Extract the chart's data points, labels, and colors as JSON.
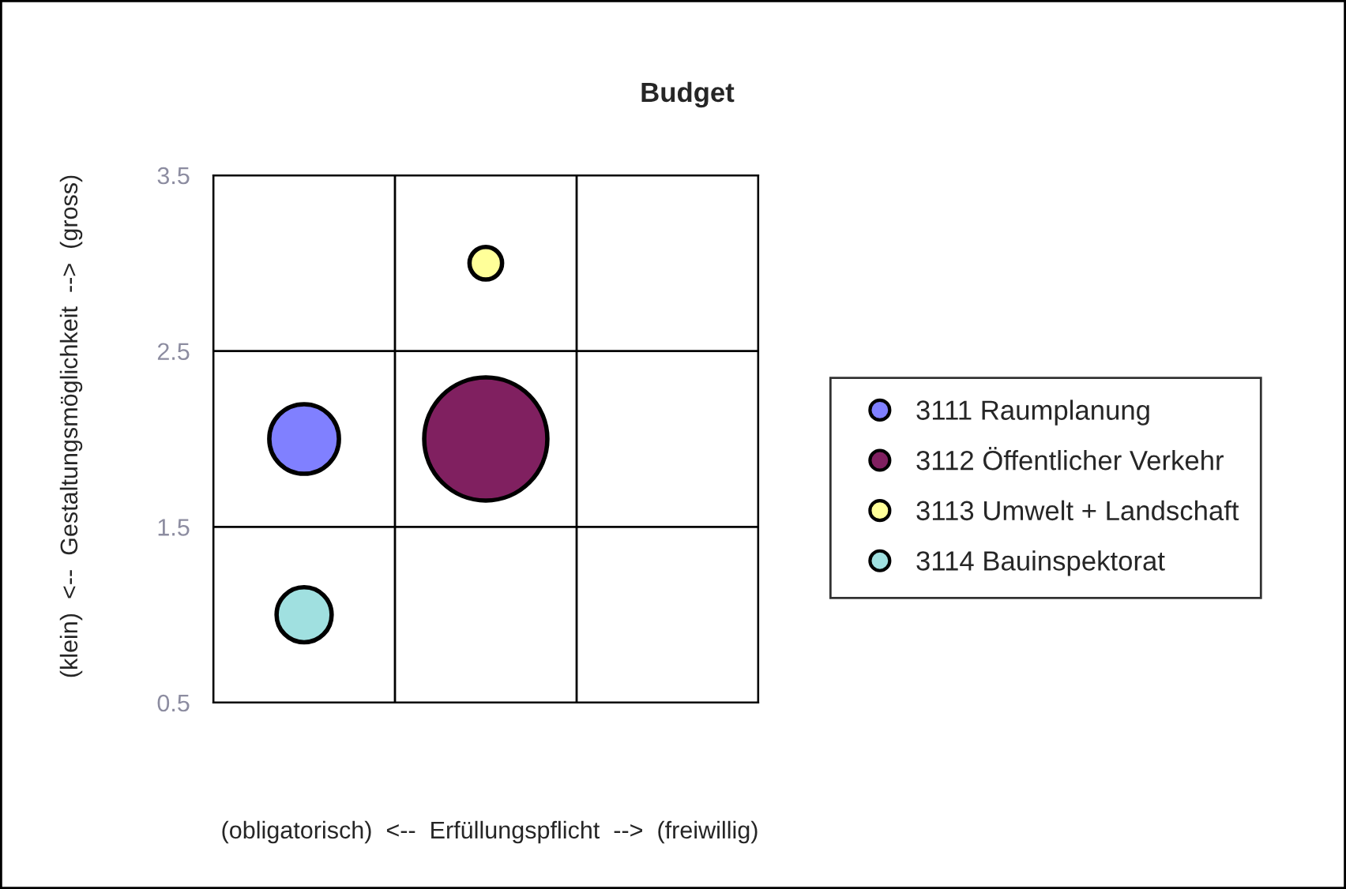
{
  "chart_data": {
    "type": "bubble",
    "title": "Budget",
    "xlabel": "(obligatorisch)  <--  Erfüllungspflicht  -->  (freiwillig)",
    "ylabel": "(klein)  <--  Gestaltungsmöglichkeit  -->  (gross)",
    "categories": [
      null,
      null,
      null
    ],
    "ylim": [
      0.5,
      3.5
    ],
    "yticks": [
      0.5,
      1.5,
      2.5,
      3.5
    ],
    "grid": true,
    "legend": "right",
    "series": [
      {
        "name": "3111 Raumplanung",
        "color": "#8080ff",
        "values": [
          2,
          null,
          null
        ],
        "sizes": [
          0.32,
          null,
          null
        ]
      },
      {
        "name": "3112 Öffentlicher Verkehr",
        "color": "#802060",
        "values": [
          null,
          2,
          null
        ],
        "sizes": [
          null,
          1,
          null
        ]
      },
      {
        "name": "3113 Umwelt + Landschaft",
        "color": "#ffff99",
        "values": [
          null,
          3,
          null
        ],
        "sizes": [
          null,
          0.07,
          null
        ]
      },
      {
        "name": "3114 Bauinspektorat",
        "color": "#a0e0e0",
        "values": [
          1,
          null,
          null
        ],
        "sizes": [
          0.2,
          null,
          null
        ]
      }
    ]
  }
}
